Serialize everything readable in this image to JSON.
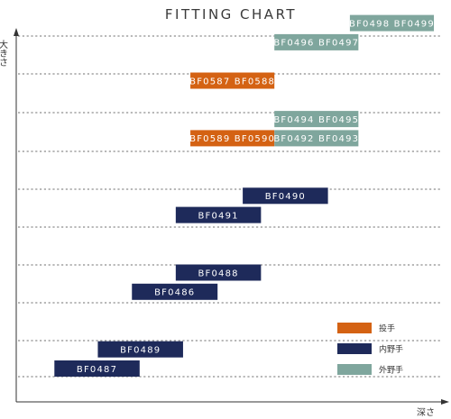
{
  "chart_data": {
    "type": "range-bar",
    "title": "FITTING CHART",
    "xlabel": "深さ",
    "ylabel": "大きさ",
    "grid": true,
    "xlim": [
      0,
      100
    ],
    "ylim": [
      0,
      10
    ],
    "legend": {
      "position": "bottom-right",
      "entries": [
        {
          "label": "投手",
          "color": "#d46213"
        },
        {
          "label": "内野手",
          "color": "#1e2a5a"
        },
        {
          "label": "外野手",
          "color": "#7fa69d"
        }
      ]
    },
    "series": [
      {
        "group": "投手",
        "color": "#d46213",
        "bars": [
          {
            "label": "BF0587  BF0588",
            "start": 38.9,
            "end": 59.6,
            "level": 7.5
          },
          {
            "label": "BF0589  BF0590",
            "start": 38.9,
            "end": 59.6,
            "level": 6.0
          }
        ]
      },
      {
        "group": "内野手",
        "color": "#1e2a5a",
        "bars": [
          {
            "label": "BF0490",
            "start": 51.8,
            "end": 72.8,
            "level": 4.5
          },
          {
            "label": "BF0491",
            "start": 35.3,
            "end": 56.3,
            "level": 4.0
          },
          {
            "label": "BF0488",
            "start": 35.3,
            "end": 56.3,
            "level": 2.5
          },
          {
            "label": "BF0486",
            "start": 24.5,
            "end": 45.6,
            "level": 2.0
          },
          {
            "label": "BF0489",
            "start": 16.1,
            "end": 37.1,
            "level": 0.5
          },
          {
            "label": "BF0487",
            "start": 5.4,
            "end": 26.4,
            "level": 0.0
          }
        ]
      },
      {
        "group": "外野手",
        "color": "#7fa69d",
        "bars": [
          {
            "label": "BF0498  BF0499",
            "start": 78.2,
            "end": 98.9,
            "level": 9.0
          },
          {
            "label": "BF0496  BF0497",
            "start": 59.6,
            "end": 80.3,
            "level": 8.5
          },
          {
            "label": "BF0494  BF0495",
            "start": 59.6,
            "end": 80.3,
            "level": 6.5
          },
          {
            "label": "BF0492  BF0493",
            "start": 59.6,
            "end": 80.3,
            "level": 6.0
          }
        ]
      }
    ]
  }
}
